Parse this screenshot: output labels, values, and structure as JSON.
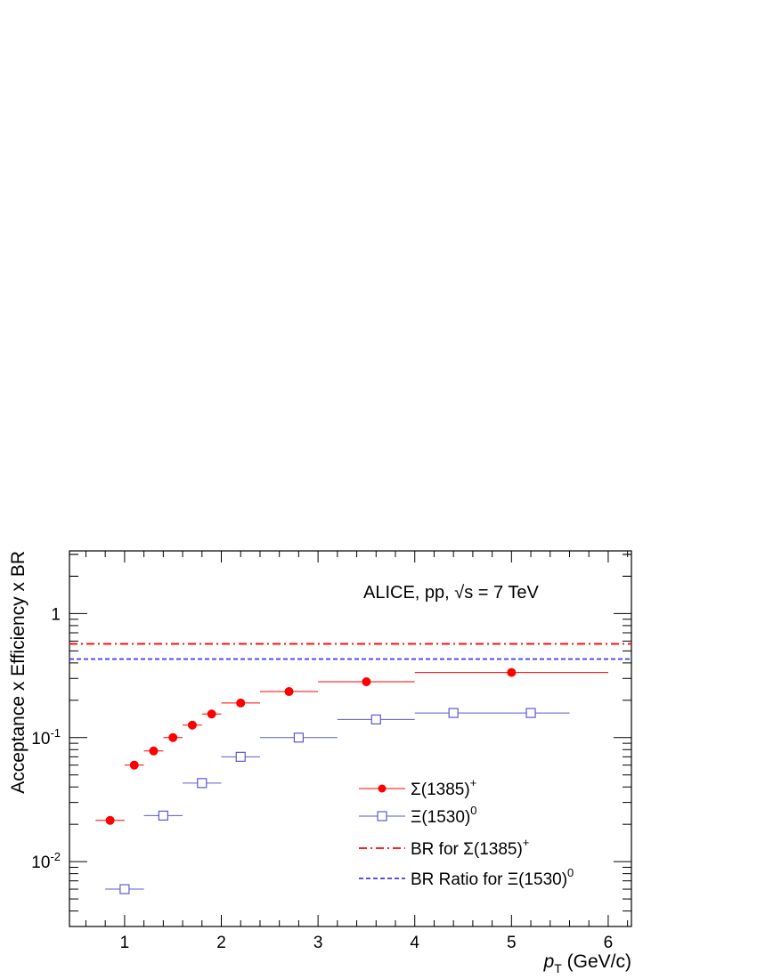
{
  "chart_data": {
    "type": "scatter",
    "annotation": "ALICE, pp, √s = 7 TeV",
    "xlabel": {
      "main": "p",
      "sub": "T",
      "unit": " (GeV/c)"
    },
    "ylabel": "Acceptance x Efficiency x BR",
    "xlim": [
      0.43,
      6.24
    ],
    "ylim": [
      0.003,
      3.2
    ],
    "y_log_scale": true,
    "grid": false,
    "legend_position": "bottom-right",
    "x_ticks": [
      "1",
      "2",
      "3",
      "4",
      "5",
      "6"
    ],
    "y_ticks": [
      {
        "value": 0.01,
        "base": "10",
        "exp": "-2"
      },
      {
        "value": 0.1,
        "base": "10",
        "exp": "-1"
      },
      {
        "value": 1,
        "base": "1",
        "exp": ""
      }
    ],
    "series": [
      {
        "name": "Σ(1385)",
        "name_sup": "+",
        "marker": "filled-circle",
        "color": "#ff0000",
        "points": [
          {
            "x": 0.85,
            "xlo": 0.7,
            "xhi": 1.0,
            "y": 0.0215
          },
          {
            "x": 1.1,
            "xlo": 1.0,
            "xhi": 1.2,
            "y": 0.06
          },
          {
            "x": 1.3,
            "xlo": 1.2,
            "xhi": 1.4,
            "y": 0.078
          },
          {
            "x": 1.5,
            "xlo": 1.4,
            "xhi": 1.6,
            "y": 0.1
          },
          {
            "x": 1.7,
            "xlo": 1.6,
            "xhi": 1.8,
            "y": 0.126
          },
          {
            "x": 1.9,
            "xlo": 1.8,
            "xhi": 2.0,
            "y": 0.155
          },
          {
            "x": 2.2,
            "xlo": 2.0,
            "xhi": 2.4,
            "y": 0.19
          },
          {
            "x": 2.7,
            "xlo": 2.4,
            "xhi": 3.0,
            "y": 0.235
          },
          {
            "x": 3.5,
            "xlo": 3.0,
            "xhi": 4.0,
            "y": 0.282
          },
          {
            "x": 5.0,
            "xlo": 4.0,
            "xhi": 6.0,
            "y": 0.335
          }
        ]
      },
      {
        "name": "Ξ(1530)",
        "name_sup": "0",
        "marker": "open-square",
        "color": "#5a5acf",
        "points": [
          {
            "x": 1.0,
            "xlo": 0.8,
            "xhi": 1.2,
            "y": 0.006
          },
          {
            "x": 1.4,
            "xlo": 1.2,
            "xhi": 1.6,
            "y": 0.0235
          },
          {
            "x": 1.8,
            "xlo": 1.6,
            "xhi": 2.0,
            "y": 0.043
          },
          {
            "x": 2.2,
            "xlo": 2.0,
            "xhi": 2.4,
            "y": 0.07
          },
          {
            "x": 2.8,
            "xlo": 2.4,
            "xhi": 3.2,
            "y": 0.1
          },
          {
            "x": 3.6,
            "xlo": 3.2,
            "xhi": 4.0,
            "y": 0.14
          },
          {
            "x": 4.4,
            "xlo": 4.0,
            "xhi": 4.8,
            "y": 0.158
          },
          {
            "x": 5.2,
            "xlo": 4.8,
            "xhi": 5.6,
            "y": 0.158
          }
        ]
      }
    ],
    "reference_lines": [
      {
        "name": "BR for Σ(1385)",
        "name_sup": "+",
        "y": 0.57,
        "style": "dash-dot",
        "color": "#ff0000"
      },
      {
        "name": "BR Ratio for Ξ(1530)",
        "name_sup": "0",
        "y": 0.43,
        "style": "dashed",
        "color": "#3b3bf0"
      }
    ]
  }
}
